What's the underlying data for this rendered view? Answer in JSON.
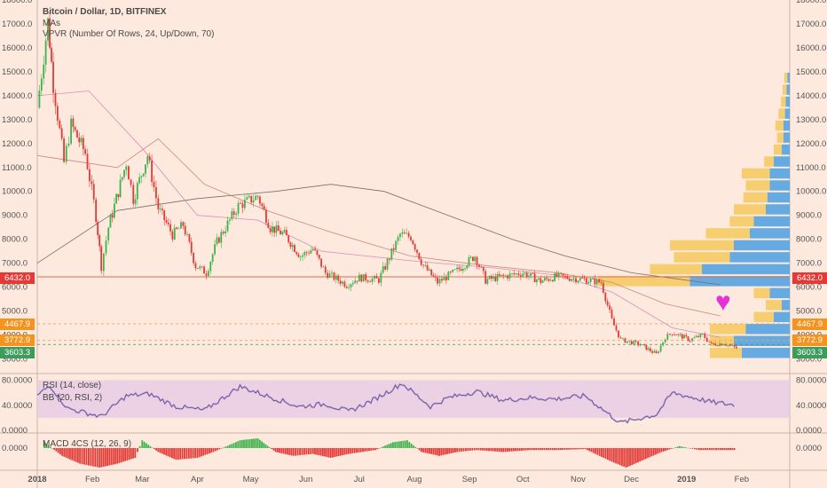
{
  "header": {
    "title": "Bitcoin / Dollar, 1D, BITFINEX",
    "mas": "MAs",
    "vpvr": "VPVR (Number Of Rows, 24, Up/Down, 70)"
  },
  "rsi_label": "RSI (14, close)",
  "bb_label": "BB (20, RSI, 2)",
  "macd_label": "MACD 4CS (12, 26, 9)",
  "price_tags": {
    "red": "6432.0",
    "orange_high": "4467.9",
    "orange_low": "3772.9",
    "green": "3603.3"
  },
  "colors": {
    "background": "#fde9dd",
    "up_candle": "#3cb44b",
    "down_candle": "#e53935",
    "vpvr_up": "#4a9fe0",
    "vpvr_down": "#f6c95c",
    "rsi_band": "#e6c8e6",
    "heart": "#e432d6"
  },
  "chart_data": [
    {
      "type": "candlestick",
      "title": "Bitcoin / Dollar, 1D, BITFINEX",
      "ylim": [
        2500,
        18000
      ],
      "y_ticks": [
        "3000.0",
        "4000.0",
        "5000.0",
        "6000.0",
        "7000.0",
        "8000.0",
        "9000.0",
        "10000.0",
        "11000.0",
        "12000.0",
        "13000.0",
        "14000.0",
        "15000.0",
        "16000.0",
        "17000.0",
        "18000.0"
      ],
      "x_ticks": [
        "2018",
        "Feb",
        "Mar",
        "Apr",
        "May",
        "Jun",
        "Jul",
        "Aug",
        "Sep",
        "Oct",
        "Nov",
        "Dec",
        "2019",
        "Feb"
      ],
      "close_path": [
        [
          "2018-01-01",
          13500
        ],
        [
          "2018-01-07",
          17100
        ],
        [
          "2018-01-10",
          14500
        ],
        [
          "2018-01-16",
          11200
        ],
        [
          "2018-01-20",
          12800
        ],
        [
          "2018-01-28",
          11600
        ],
        [
          "2018-02-03",
          9000
        ],
        [
          "2018-02-06",
          6900
        ],
        [
          "2018-02-10",
          8500
        ],
        [
          "2018-02-20",
          11200
        ],
        [
          "2018-02-24",
          9700
        ],
        [
          "2018-03-04",
          11500
        ],
        [
          "2018-03-10",
          9300
        ],
        [
          "2018-03-18",
          8200
        ],
        [
          "2018-03-24",
          8600
        ],
        [
          "2018-03-31",
          6900
        ],
        [
          "2018-04-06",
          6600
        ],
        [
          "2018-04-12",
          7900
        ],
        [
          "2018-04-24",
          9400
        ],
        [
          "2018-05-05",
          9800
        ],
        [
          "2018-05-12",
          8500
        ],
        [
          "2018-05-20",
          8200
        ],
        [
          "2018-05-29",
          7300
        ],
        [
          "2018-06-05",
          7600
        ],
        [
          "2018-06-12",
          6600
        ],
        [
          "2018-06-24",
          6100
        ],
        [
          "2018-07-01",
          6400
        ],
        [
          "2018-07-12",
          6300
        ],
        [
          "2018-07-24",
          8200
        ],
        [
          "2018-07-30",
          8100
        ],
        [
          "2018-08-06",
          6900
        ],
        [
          "2018-08-14",
          6200
        ],
        [
          "2018-08-25",
          6700
        ],
        [
          "2018-09-04",
          7300
        ],
        [
          "2018-09-10",
          6300
        ],
        [
          "2018-09-20",
          6450
        ],
        [
          "2018-10-01",
          6600
        ],
        [
          "2018-10-11",
          6250
        ],
        [
          "2018-10-20",
          6450
        ],
        [
          "2018-11-01",
          6350
        ],
        [
          "2018-11-14",
          6200
        ],
        [
          "2018-11-20",
          4600
        ],
        [
          "2018-11-25",
          3800
        ],
        [
          "2018-12-06",
          3600
        ],
        [
          "2018-12-15",
          3200
        ],
        [
          "2018-12-20",
          3900
        ],
        [
          "2018-12-24",
          4100
        ],
        [
          "2019-01-03",
          3800
        ],
        [
          "2019-01-10",
          4000
        ],
        [
          "2019-01-15",
          3600
        ],
        [
          "2019-01-22",
          3650
        ],
        [
          "2019-01-29",
          3450
        ]
      ],
      "moving_averages": [
        {
          "values": [
            [
              "2018-01-01",
              14000
            ],
            [
              "2018-01-30",
              14200
            ],
            [
              "2018-03-01",
              11800
            ],
            [
              "2018-04-01",
              9000
            ],
            [
              "2018-05-05",
              8800
            ],
            [
              "2018-06-10",
              7500
            ],
            [
              "2018-07-30",
              7100
            ],
            [
              "2018-09-15",
              6800
            ],
            [
              "2018-10-20",
              6500
            ],
            [
              "2018-11-20",
              5800
            ],
            [
              "2018-12-24",
              4300
            ],
            [
              "2019-01-20",
              3900
            ]
          ]
        },
        {
          "values": [
            [
              "2018-01-01",
              11500
            ],
            [
              "2018-02-15",
              11000
            ],
            [
              "2018-03-10",
              12200
            ],
            [
              "2018-04-05",
              10300
            ],
            [
              "2018-05-10",
              9200
            ],
            [
              "2018-06-15",
              8300
            ],
            [
              "2018-07-30",
              7300
            ],
            [
              "2018-09-10",
              6900
            ],
            [
              "2018-10-20",
              6600
            ],
            [
              "2018-11-20",
              6200
            ],
            [
              "2018-12-20",
              5300
            ],
            [
              "2019-01-20",
              4800
            ]
          ]
        },
        {
          "values": [
            [
              "2018-01-01",
              7000
            ],
            [
              "2018-02-15",
              9200
            ],
            [
              "2018-04-01",
              9700
            ],
            [
              "2018-05-15",
              10000
            ],
            [
              "2018-06-15",
              10300
            ],
            [
              "2018-07-15",
              10000
            ],
            [
              "2018-08-20",
              9000
            ],
            [
              "2018-09-25",
              8000
            ],
            [
              "2018-10-25",
              7300
            ],
            [
              "2018-12-01",
              6600
            ],
            [
              "2019-01-20",
              6100
            ]
          ]
        }
      ],
      "horizontal_lines": [
        {
          "value": 6432.0,
          "label": "6432.0"
        },
        {
          "value": 4467.9,
          "label": "4467.9"
        },
        {
          "value": 3772.9,
          "label": "3772.9"
        },
        {
          "value": 3603.3,
          "label": "3603.3"
        }
      ],
      "vpvr_rows": [
        {
          "price_low": 3000,
          "up": 60,
          "down": 40
        },
        {
          "price_low": 3500,
          "up": 70,
          "down": 30
        },
        {
          "price_low": 4000,
          "up": 55,
          "down": 45
        },
        {
          "price_low": 4500,
          "up": 20,
          "down": 25
        },
        {
          "price_low": 5000,
          "up": 10,
          "down": 20
        },
        {
          "price_low": 5500,
          "up": 25,
          "down": 20
        },
        {
          "price_low": 6000,
          "up": 125,
          "down": 115
        },
        {
          "price_low": 6500,
          "up": 110,
          "down": 65
        },
        {
          "price_low": 7000,
          "up": 75,
          "down": 70
        },
        {
          "price_low": 7500,
          "up": 70,
          "down": 80
        },
        {
          "price_low": 8000,
          "up": 50,
          "down": 55
        },
        {
          "price_low": 8500,
          "up": 45,
          "down": 30
        },
        {
          "price_low": 9000,
          "up": 30,
          "down": 40
        },
        {
          "price_low": 9500,
          "up": 28,
          "down": 30
        },
        {
          "price_low": 10000,
          "up": 25,
          "down": 30
        },
        {
          "price_low": 10500,
          "up": 25,
          "down": 35
        },
        {
          "price_low": 11000,
          "up": 20,
          "down": 12
        },
        {
          "price_low": 11500,
          "up": 10,
          "down": 10
        },
        {
          "price_low": 12000,
          "up": 8,
          "down": 8
        },
        {
          "price_low": 12500,
          "up": 8,
          "down": 10
        },
        {
          "price_low": 13000,
          "up": 6,
          "down": 8
        },
        {
          "price_low": 13500,
          "up": 5,
          "down": 6
        },
        {
          "price_low": 14000,
          "up": 4,
          "down": 5
        },
        {
          "price_low": 14500,
          "up": 3,
          "down": 4
        }
      ]
    },
    {
      "type": "line",
      "title": "RSI (14, close)",
      "ylim": [
        0,
        85
      ],
      "y_ticks": [
        "0.0000",
        "40.0000",
        "80.0000"
      ],
      "series": [
        {
          "values": [
            [
              "2018-01-01",
              55
            ],
            [
              "2018-01-08",
              72
            ],
            [
              "2018-01-18",
              35
            ],
            [
              "2018-02-06",
              22
            ],
            [
              "2018-02-20",
              55
            ],
            [
              "2018-03-05",
              58
            ],
            [
              "2018-03-20",
              38
            ],
            [
              "2018-04-05",
              32
            ],
            [
              "2018-04-25",
              70
            ],
            [
              "2018-05-10",
              55
            ],
            [
              "2018-05-28",
              38
            ],
            [
              "2018-06-12",
              42
            ],
            [
              "2018-06-25",
              30
            ],
            [
              "2018-07-10",
              50
            ],
            [
              "2018-07-25",
              75
            ],
            [
              "2018-08-10",
              38
            ],
            [
              "2018-08-20",
              52
            ],
            [
              "2018-09-05",
              62
            ],
            [
              "2018-09-20",
              48
            ],
            [
              "2018-10-05",
              52
            ],
            [
              "2018-10-20",
              50
            ],
            [
              "2018-11-05",
              55
            ],
            [
              "2018-11-20",
              22
            ],
            [
              "2018-11-25",
              12
            ],
            [
              "2018-12-10",
              22
            ],
            [
              "2018-12-15",
              25
            ],
            [
              "2018-12-24",
              60
            ],
            [
              "2019-01-05",
              52
            ],
            [
              "2019-01-15",
              45
            ],
            [
              "2019-01-29",
              40
            ]
          ]
        }
      ]
    },
    {
      "type": "bar",
      "title": "MACD 4CS (12, 26, 9)",
      "y_ticks": [
        "0.0000"
      ],
      "histogram": [
        [
          "2018-01-05",
          0.3
        ],
        [
          "2018-01-15",
          -0.4
        ],
        [
          "2018-01-25",
          -0.8
        ],
        [
          "2018-02-05",
          -1.0
        ],
        [
          "2018-02-15",
          -0.8
        ],
        [
          "2018-02-25",
          -0.5
        ],
        [
          "2018-03-01",
          0.4
        ],
        [
          "2018-03-10",
          -0.2
        ],
        [
          "2018-03-20",
          -0.6
        ],
        [
          "2018-04-01",
          -0.5
        ],
        [
          "2018-04-10",
          -0.2
        ],
        [
          "2018-04-25",
          0.4
        ],
        [
          "2018-05-05",
          0.5
        ],
        [
          "2018-05-15",
          -0.2
        ],
        [
          "2018-05-25",
          -0.4
        ],
        [
          "2018-06-05",
          -0.3
        ],
        [
          "2018-06-15",
          -0.5
        ],
        [
          "2018-06-25",
          -0.3
        ],
        [
          "2018-07-10",
          -0.1
        ],
        [
          "2018-07-20",
          0.3
        ],
        [
          "2018-07-28",
          0.4
        ],
        [
          "2018-08-05",
          -0.2
        ],
        [
          "2018-08-15",
          -0.4
        ],
        [
          "2018-08-25",
          -0.2
        ],
        [
          "2018-09-05",
          -0.1
        ],
        [
          "2018-09-20",
          -0.2
        ],
        [
          "2018-10-05",
          -0.1
        ],
        [
          "2018-10-20",
          -0.1
        ],
        [
          "2018-11-05",
          -0.05
        ],
        [
          "2018-11-20",
          -0.7
        ],
        [
          "2018-11-28",
          -1.0
        ],
        [
          "2018-12-08",
          -0.6
        ],
        [
          "2018-12-18",
          -0.2
        ],
        [
          "2018-12-28",
          0.1
        ],
        [
          "2019-01-08",
          -0.1
        ],
        [
          "2019-01-20",
          -0.1
        ],
        [
          "2019-01-29",
          -0.1
        ]
      ]
    }
  ]
}
